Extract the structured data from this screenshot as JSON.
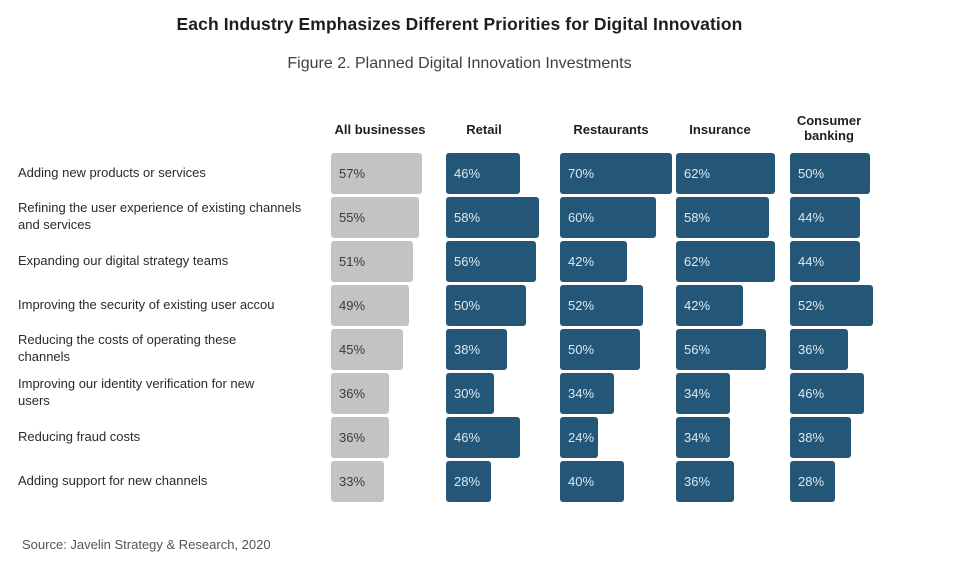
{
  "header": {
    "title": "Each Industry Emphasizes Different Priorities for Digital Innovation",
    "subtitle": "Figure 2. Planned Digital Innovation Investments"
  },
  "footer": {
    "source": "Source: Javelin Strategy & Research, 2020"
  },
  "colors": {
    "all_businesses": "#c3c3c3",
    "industry": "#245777",
    "all_businesses_text": "#3a3a3a",
    "industry_text": "#dbe8f2"
  },
  "chart_data": {
    "type": "bar",
    "orientation": "horizontal",
    "layout": "small-multiples",
    "title": "Each Industry Emphasizes Different Priorities for Digital Innovation",
    "subtitle": "Figure 2. Planned Digital Innovation Investments",
    "unit": "%",
    "xlim": [
      0,
      70
    ],
    "grid": false,
    "legend": "none",
    "categories": [
      "Adding new products or services",
      "Refining the user experience of existing channels and services",
      "Expanding our digital strategy teams",
      "Improving the security of existing user accou",
      "Reducing the costs of operating these channels",
      "Improving our identity verification for new users",
      "Reducing fraud costs",
      "Adding support for new channels"
    ],
    "series": [
      {
        "name": "All businesses",
        "values": [
          57,
          55,
          51,
          49,
          45,
          36,
          36,
          33
        ]
      },
      {
        "name": "Retail",
        "values": [
          46,
          58,
          56,
          50,
          38,
          30,
          46,
          28
        ]
      },
      {
        "name": "Restaurants",
        "values": [
          70,
          60,
          42,
          52,
          50,
          34,
          24,
          40
        ]
      },
      {
        "name": "Insurance",
        "values": [
          62,
          58,
          62,
          42,
          56,
          34,
          34,
          36
        ]
      },
      {
        "name": "Consumer banking",
        "values": [
          50,
          44,
          44,
          52,
          36,
          46,
          38,
          28
        ]
      }
    ],
    "source": "Source: Javelin Strategy & Research, 2020"
  }
}
